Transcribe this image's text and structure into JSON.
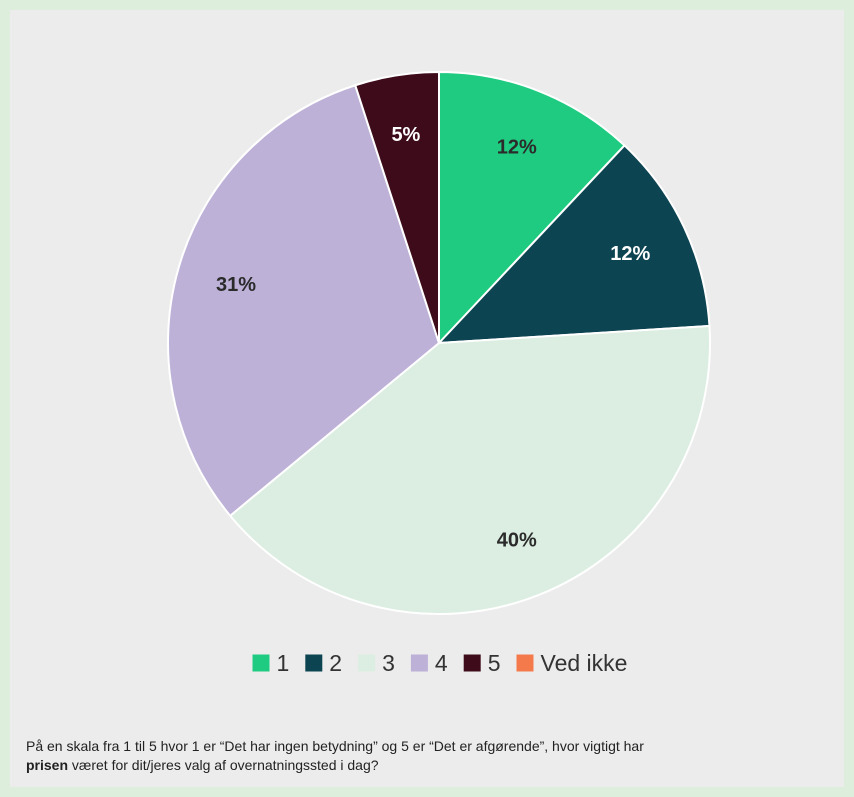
{
  "chart_data": {
    "type": "pie",
    "categories": [
      "1",
      "2",
      "3",
      "4",
      "5",
      "Ved ikke"
    ],
    "values": [
      12,
      12,
      40,
      31,
      5,
      0
    ],
    "labels": [
      "12%",
      "12%",
      "40%",
      "31%",
      "5%",
      ""
    ],
    "colors": [
      "#1ecb80",
      "#0d4452",
      "#dbeee1",
      "#bdb1d8",
      "#3d0b1a",
      "#f47a4c"
    ],
    "label_colors": [
      "#2b2b2b",
      "#ffffff",
      "#2b2b2b",
      "#2b2b2b",
      "#ffffff",
      "#2b2b2b"
    ],
    "legend": [
      "1",
      "2",
      "3",
      "4",
      "5",
      "Ved ikke"
    ],
    "legend_placement": "bottom",
    "title": ""
  },
  "caption": {
    "part1": "På en skala fra 1 til 5 hvor 1 er “Det har ingen betydning” og 5 er “Det er afgørende”, hvor vigtigt har",
    "bold": "prisen",
    "part2": " været for dit/jeres valg af overnatningssted i dag?"
  }
}
